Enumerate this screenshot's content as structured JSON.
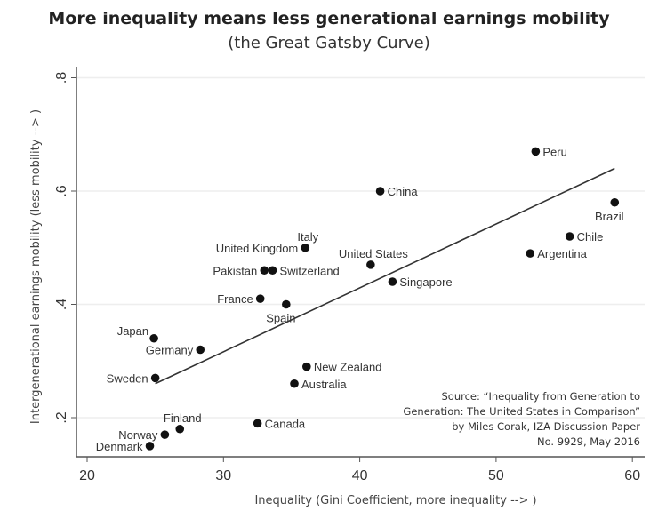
{
  "chart_data": {
    "type": "scatter",
    "title": "More inequality means less generational earnings mobility",
    "subtitle": "(the Great Gatsby Curve)",
    "xlabel": "Inequality (Gini Coefficient, more inequality --> )",
    "ylabel": "Intergenerational earnings mobility (less mobility --> )",
    "xlim": [
      19.5,
      61
    ],
    "ylim": [
      0.13,
      0.82
    ],
    "xticks": [
      {
        "v": 20,
        "label": "20"
      },
      {
        "v": 30,
        "label": "30"
      },
      {
        "v": 40,
        "label": "40"
      },
      {
        "v": 50,
        "label": "50"
      },
      {
        "v": 60,
        "label": "60"
      }
    ],
    "yticks": [
      {
        "v": 0.2,
        "label": ".2"
      },
      {
        "v": 0.4,
        "label": ".4"
      },
      {
        "v": 0.6,
        "label": ".6"
      },
      {
        "v": 0.8,
        "label": ".8"
      }
    ],
    "grid": true,
    "points": [
      {
        "name": "Peru",
        "x": 52.9,
        "y": 0.67,
        "pos": "r"
      },
      {
        "name": "China",
        "x": 41.5,
        "y": 0.6,
        "pos": "r"
      },
      {
        "name": "Brazil",
        "x": 58.7,
        "y": 0.58,
        "pos": "b"
      },
      {
        "name": "Chile",
        "x": 55.4,
        "y": 0.52,
        "pos": "r"
      },
      {
        "name": "Argentina",
        "x": 52.5,
        "y": 0.49,
        "pos": "r"
      },
      {
        "name": "United States",
        "x": 40.8,
        "y": 0.47,
        "pos": "t"
      },
      {
        "name": "Singapore",
        "x": 42.4,
        "y": 0.44,
        "pos": "r"
      },
      {
        "name": "Italy",
        "x": 36.0,
        "y": 0.5,
        "pos": "t"
      },
      {
        "name": "United Kingdom",
        "x": 36.0,
        "y": 0.5,
        "pos": "l"
      },
      {
        "name": "Pakistan",
        "x": 33.0,
        "y": 0.46,
        "pos": "l"
      },
      {
        "name": "Switzerland",
        "x": 33.6,
        "y": 0.46,
        "pos": "r"
      },
      {
        "name": "France",
        "x": 32.7,
        "y": 0.41,
        "pos": "l"
      },
      {
        "name": "Spain",
        "x": 34.6,
        "y": 0.4,
        "pos": "b"
      },
      {
        "name": "Japan",
        "x": 24.9,
        "y": 0.34,
        "pos": "tl"
      },
      {
        "name": "Germany",
        "x": 28.3,
        "y": 0.32,
        "pos": "l"
      },
      {
        "name": "Sweden",
        "x": 25.0,
        "y": 0.27,
        "pos": "l"
      },
      {
        "name": "New Zealand",
        "x": 36.1,
        "y": 0.29,
        "pos": "r"
      },
      {
        "name": "Australia",
        "x": 35.2,
        "y": 0.26,
        "pos": "r"
      },
      {
        "name": "Canada",
        "x": 32.5,
        "y": 0.19,
        "pos": "r"
      },
      {
        "name": "Finland",
        "x": 26.8,
        "y": 0.18,
        "pos": "t"
      },
      {
        "name": "Norway",
        "x": 25.7,
        "y": 0.17,
        "pos": "l"
      },
      {
        "name": "Denmark",
        "x": 24.6,
        "y": 0.15,
        "pos": "l"
      }
    ],
    "fit_line": {
      "x": [
        25,
        58.7
      ],
      "y": [
        0.26,
        0.64
      ]
    }
  },
  "source": [
    "Source: “Inequality from Generation to",
    "Generation: The United States in Comparison”",
    "by Miles Corak, IZA Discussion Paper",
    "No. 9929, May 2016"
  ]
}
